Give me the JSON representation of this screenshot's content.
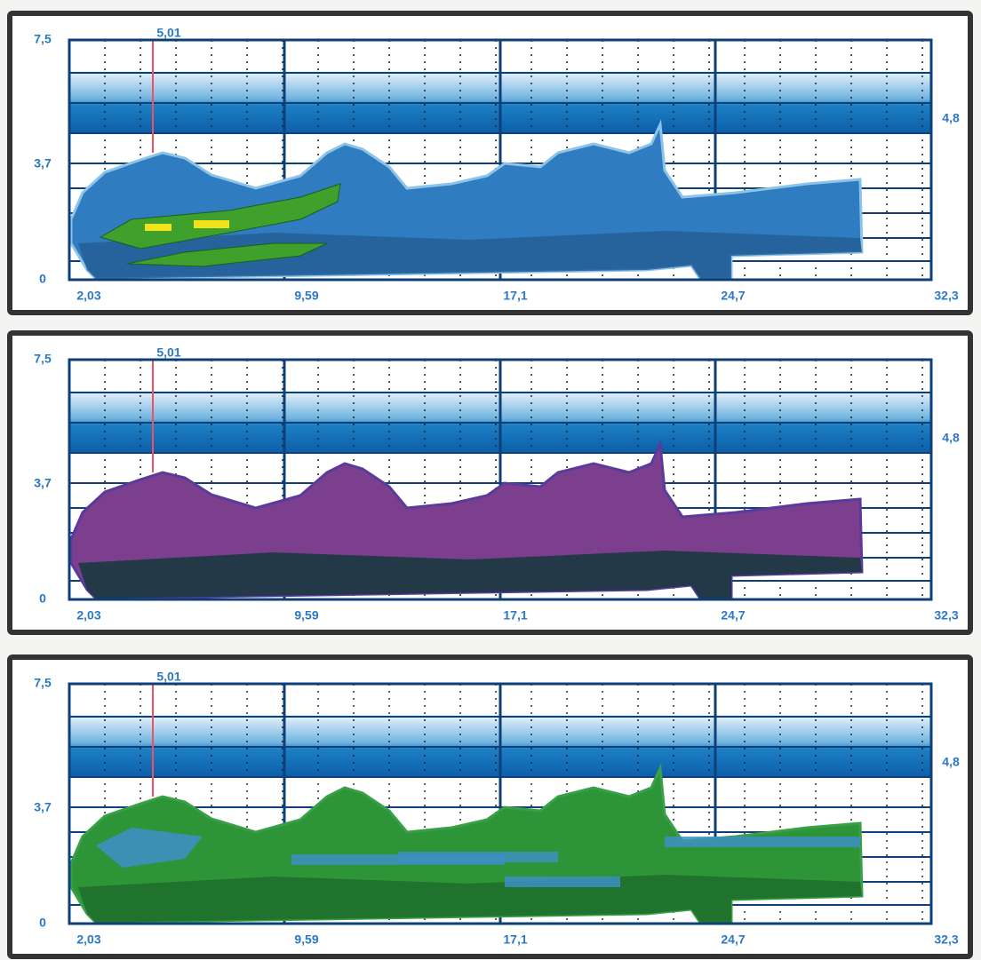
{
  "panels": [
    {
      "y_labels": [
        "7,5",
        "3,7",
        "0"
      ],
      "marker_label": "5,01",
      "right_label": "4,8",
      "x_labels": [
        "2,03",
        "9,59",
        "17,1",
        "24,7",
        "32,3"
      ]
    },
    {
      "y_labels": [
        "7,5",
        "3,7",
        "0"
      ],
      "marker_label": "5,01",
      "right_label": "4,8",
      "x_labels": [
        "2,03",
        "9,59",
        "17,1",
        "24,7",
        "32,3"
      ]
    },
    {
      "y_labels": [
        "7,5",
        "3,7",
        "0"
      ],
      "marker_label": "5,01",
      "right_label": "4,8",
      "x_labels": [
        "2,03",
        "9,59",
        "17,1",
        "24,7",
        "32,3"
      ]
    }
  ]
}
